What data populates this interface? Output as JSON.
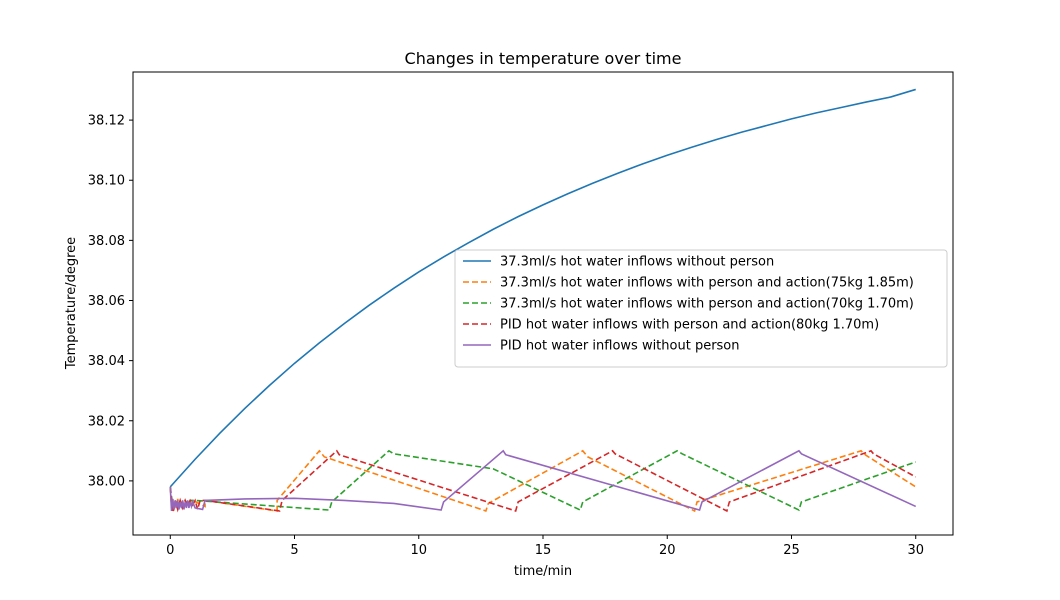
{
  "chart_data": {
    "type": "line",
    "title": "Changes in temperature over time",
    "xlabel": "time/min",
    "ylabel": "Temperature/degree",
    "xlim": [
      -1.5,
      31.5
    ],
    "ylim": [
      37.982,
      38.136
    ],
    "xticks": [
      0,
      5,
      10,
      15,
      20,
      25,
      30
    ],
    "yticks": [
      38.0,
      38.02,
      38.04,
      38.06,
      38.08,
      38.1,
      38.12
    ],
    "ytick_labels": [
      "38.00",
      "38.02",
      "38.04",
      "38.06",
      "38.08",
      "38.10",
      "38.12"
    ],
    "grid": false,
    "legend_position": "center-right",
    "series": [
      {
        "name": "37.3ml/s hot water inflows without person",
        "color": "#1f77b4",
        "dash": "solid",
        "x": [
          0,
          1,
          2,
          3,
          4,
          5,
          6,
          7,
          8,
          9,
          10,
          11,
          12,
          13,
          14,
          15,
          16,
          17,
          18,
          19,
          20,
          21,
          22,
          23,
          24,
          25,
          26,
          27,
          28,
          29,
          30
        ],
        "y": [
          37.998,
          38.0072,
          38.0159,
          38.0241,
          38.0318,
          38.0391,
          38.0459,
          38.0523,
          38.0584,
          38.0641,
          38.0695,
          38.0745,
          38.0792,
          38.0837,
          38.0879,
          38.0918,
          38.0955,
          38.099,
          38.1023,
          38.1054,
          38.1083,
          38.111,
          38.1136,
          38.116,
          38.1182,
          38.1204,
          38.1224,
          38.1242,
          38.126,
          38.1277,
          38.1302
        ]
      },
      {
        "name": "37.3ml/s hot water inflows with person and action(75kg 1.85m)",
        "color": "#ff7f0e",
        "dash": "dashed",
        "x": [
          0,
          0.05,
          0.1,
          0.15,
          0.2,
          0.25,
          0.3,
          0.35,
          0.4,
          0.45,
          0.5,
          0.55,
          0.6,
          0.65,
          0.7,
          0.75,
          0.8,
          0.85,
          0.9,
          1.4,
          1.4,
          4.3,
          4.3,
          6.0,
          6.2,
          12.7,
          12.8,
          16.6,
          16.8,
          21.1,
          21.2,
          27.8,
          28.0,
          30
        ],
        "y": [
          37.998,
          37.991,
          37.994,
          37.99,
          37.993,
          37.991,
          37.994,
          37.991,
          37.993,
          37.9915,
          37.993,
          37.992,
          37.9935,
          37.991,
          37.993,
          37.9915,
          37.9935,
          37.992,
          37.9935,
          37.9915,
          37.9935,
          37.99,
          37.9935,
          38.01,
          38.008,
          37.99,
          37.9925,
          38.01,
          38.008,
          37.99,
          37.993,
          38.01,
          38.0085,
          37.998
        ]
      },
      {
        "name": "37.3ml/s hot water inflows with person and action(70kg 1.70m)",
        "color": "#2ca02c",
        "dash": "dashed",
        "x": [
          0,
          0.1,
          0.2,
          0.3,
          0.4,
          0.5,
          0.6,
          0.7,
          0.8,
          1.0,
          6.4,
          6.5,
          8.8,
          9.0,
          13.0,
          16.5,
          16.6,
          20.4,
          20.6,
          25.3,
          25.4,
          30
        ],
        "y": [
          37.998,
          37.9915,
          37.9935,
          37.991,
          37.9935,
          37.9915,
          37.9935,
          37.992,
          37.9935,
          37.9935,
          37.9903,
          37.993,
          38.01,
          38.009,
          38.004,
          37.9903,
          37.993,
          38.01,
          38.009,
          37.9903,
          37.993,
          38.0063
        ]
      },
      {
        "name": "PID hot water inflows with person and action(80kg 1.70m)",
        "color": "#d62728",
        "dash": "dashed",
        "x": [
          0,
          0.1,
          0.2,
          0.3,
          0.4,
          0.5,
          0.6,
          0.7,
          0.8,
          0.9,
          1.0,
          1.1,
          1.2,
          1.4,
          4.4,
          4.5,
          6.7,
          6.8,
          13.9,
          14.0,
          17.8,
          17.9,
          22.4,
          22.5,
          28.2,
          28.3,
          30
        ],
        "y": [
          37.998,
          37.9895,
          37.9935,
          37.9905,
          37.9935,
          37.991,
          37.9935,
          37.9915,
          37.9935,
          37.992,
          37.9935,
          37.9905,
          37.9935,
          37.9935,
          37.99,
          37.9935,
          38.01,
          38.0087,
          37.99,
          37.993,
          38.01,
          38.009,
          37.99,
          37.993,
          38.01,
          38.009,
          38.0013
        ]
      },
      {
        "name": "PID hot water inflows without person",
        "color": "#9467bd",
        "dash": "solid",
        "x": [
          0,
          0.05,
          0.1,
          0.15,
          0.2,
          0.25,
          0.3,
          0.35,
          0.4,
          0.45,
          0.5,
          0.55,
          0.6,
          0.65,
          0.7,
          0.75,
          0.8,
          0.85,
          0.9,
          1.0,
          1.3,
          1.4,
          3,
          5,
          7,
          9,
          10.9,
          11.0,
          13.4,
          13.5,
          21.3,
          21.4,
          25.3,
          25.4,
          30
        ],
        "y": [
          37.998,
          37.99,
          37.994,
          37.9905,
          37.9935,
          37.991,
          37.9935,
          37.9905,
          37.993,
          37.991,
          37.9935,
          37.9905,
          37.993,
          37.991,
          37.9935,
          37.991,
          37.993,
          37.9915,
          37.993,
          37.991,
          37.9905,
          37.9935,
          37.994,
          37.9942,
          37.9935,
          37.9925,
          37.9903,
          37.993,
          38.01,
          38.0087,
          37.9903,
          37.993,
          38.01,
          38.009,
          37.9915
        ]
      }
    ]
  }
}
